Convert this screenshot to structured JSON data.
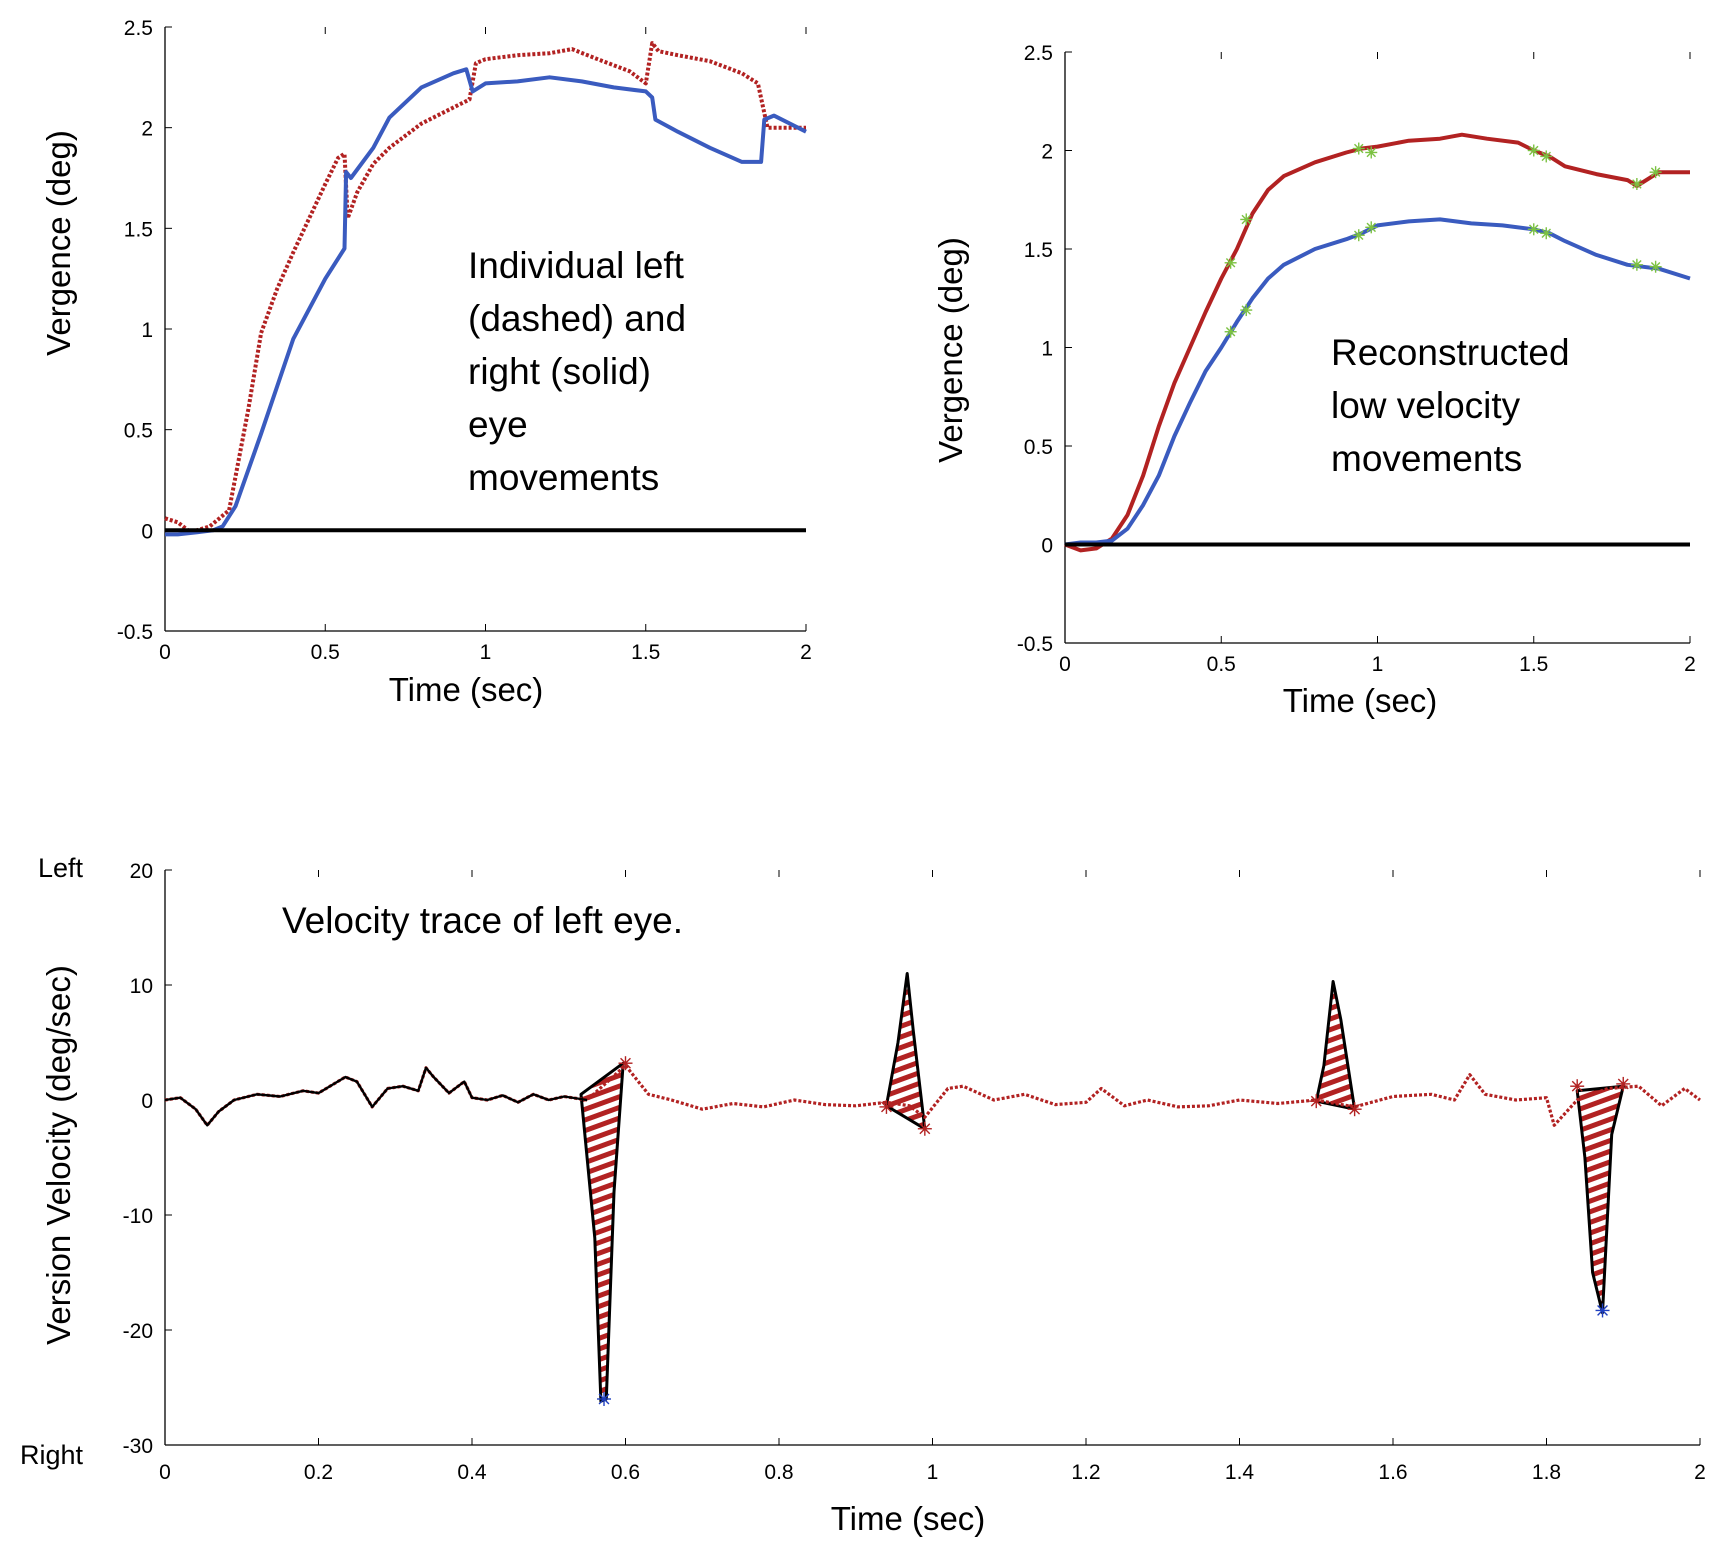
{
  "chart_data": [
    {
      "type": "line",
      "xlabel": "Time (sec)",
      "ylabel": "Vergence (deg)",
      "xlim": [
        0,
        2
      ],
      "ylim": [
        -0.5,
        2.5
      ],
      "xticks": [
        "0",
        "0.5",
        "1",
        "1.5",
        "2"
      ],
      "yticks": [
        "-0.5",
        "0",
        "0.5",
        "1",
        "1.5",
        "2",
        "2.5"
      ],
      "annotation": [
        "Individual left",
        "(dashed) and",
        "right (solid)",
        "eye",
        "movements"
      ],
      "colors": {
        "dashed": "#b22222",
        "solid": "#3a5bbf",
        "zero": "#000000"
      },
      "series": [
        {
          "style": "dashed",
          "color": "#b22222",
          "x": [
            0,
            0.04,
            0.08,
            0.14,
            0.2,
            0.26,
            0.3,
            0.35,
            0.4,
            0.45,
            0.5,
            0.54,
            0.56,
            0.57,
            0.6,
            0.65,
            0.7,
            0.8,
            0.9,
            0.95,
            0.97,
            1.0,
            1.1,
            1.2,
            1.27,
            1.35,
            1.45,
            1.5,
            1.52,
            1.54,
            1.6,
            1.7,
            1.8,
            1.85,
            1.88,
            1.9,
            2.0
          ],
          "y": [
            0.06,
            0.04,
            -0.01,
            0.02,
            0.1,
            0.6,
            0.98,
            1.2,
            1.38,
            1.55,
            1.72,
            1.85,
            1.87,
            1.55,
            1.68,
            1.82,
            1.9,
            2.02,
            2.1,
            2.14,
            2.32,
            2.34,
            2.36,
            2.37,
            2.39,
            2.34,
            2.28,
            2.22,
            2.42,
            2.38,
            2.36,
            2.33,
            2.27,
            2.22,
            2.0,
            2.0,
            2.0
          ]
        },
        {
          "style": "solid",
          "color": "#3a5bbf",
          "x": [
            0,
            0.04,
            0.1,
            0.15,
            0.18,
            0.22,
            0.3,
            0.4,
            0.5,
            0.56,
            0.565,
            0.58,
            0.65,
            0.7,
            0.8,
            0.9,
            0.94,
            0.96,
            1.0,
            1.1,
            1.2,
            1.3,
            1.4,
            1.5,
            1.52,
            1.53,
            1.6,
            1.7,
            1.8,
            1.86,
            1.87,
            1.9,
            2.0
          ],
          "y": [
            -0.02,
            -0.02,
            -0.01,
            0.0,
            0.02,
            0.12,
            0.48,
            0.95,
            1.25,
            1.4,
            1.78,
            1.75,
            1.9,
            2.05,
            2.2,
            2.27,
            2.29,
            2.18,
            2.22,
            2.23,
            2.25,
            2.23,
            2.2,
            2.18,
            2.15,
            2.04,
            1.98,
            1.9,
            1.83,
            1.83,
            2.04,
            2.06,
            1.98
          ]
        },
        {
          "style": "zero",
          "color": "#000000",
          "x": [
            0,
            2
          ],
          "y": [
            0,
            0
          ]
        }
      ]
    },
    {
      "type": "line",
      "xlabel": "Time (sec)",
      "ylabel": "Vergence (deg)",
      "xlim": [
        0,
        2
      ],
      "ylim": [
        -0.5,
        2.5
      ],
      "xticks": [
        "0",
        "0.5",
        "1",
        "1.5",
        "2"
      ],
      "yticks": [
        "-0.5",
        "0",
        "0.5",
        "1",
        "1.5",
        "2",
        "2.5"
      ],
      "annotation": [
        "Reconstructed",
        "low velocity",
        "movements"
      ],
      "colors": {
        "red": "#b22222",
        "blue": "#3a5bbf",
        "markers": "#7cc242",
        "zero": "#000000"
      },
      "series": [
        {
          "color": "#b22222",
          "x": [
            0,
            0.05,
            0.1,
            0.15,
            0.2,
            0.25,
            0.3,
            0.35,
            0.4,
            0.45,
            0.5,
            0.55,
            0.6,
            0.65,
            0.7,
            0.8,
            0.9,
            0.95,
            1.0,
            1.1,
            1.2,
            1.27,
            1.35,
            1.45,
            1.5,
            1.55,
            1.6,
            1.7,
            1.8,
            1.83,
            1.9,
            2.0
          ],
          "y": [
            0.0,
            -0.03,
            -0.02,
            0.03,
            0.15,
            0.35,
            0.6,
            0.82,
            1.0,
            1.18,
            1.35,
            1.5,
            1.68,
            1.8,
            1.87,
            1.94,
            1.99,
            2.01,
            2.02,
            2.05,
            2.06,
            2.08,
            2.06,
            2.04,
            2.0,
            1.97,
            1.92,
            1.88,
            1.85,
            1.82,
            1.89,
            1.89
          ]
        },
        {
          "color": "#3a5bbf",
          "x": [
            0,
            0.05,
            0.1,
            0.15,
            0.2,
            0.25,
            0.3,
            0.35,
            0.4,
            0.45,
            0.5,
            0.55,
            0.6,
            0.65,
            0.7,
            0.8,
            0.9,
            0.95,
            1.0,
            1.1,
            1.2,
            1.3,
            1.4,
            1.5,
            1.55,
            1.6,
            1.7,
            1.8,
            1.9,
            2.0
          ],
          "y": [
            0.0,
            0.01,
            0.01,
            0.02,
            0.08,
            0.2,
            0.35,
            0.55,
            0.72,
            0.88,
            1.0,
            1.13,
            1.25,
            1.35,
            1.42,
            1.5,
            1.55,
            1.58,
            1.62,
            1.64,
            1.65,
            1.63,
            1.62,
            1.6,
            1.58,
            1.54,
            1.47,
            1.42,
            1.4,
            1.35
          ]
        },
        {
          "style": "zero",
          "color": "#000000",
          "x": [
            0,
            2
          ],
          "y": [
            0,
            0
          ]
        }
      ],
      "markers": [
        {
          "x": 0.53,
          "y": 1.43
        },
        {
          "x": 0.58,
          "y": 1.65
        },
        {
          "x": 0.94,
          "y": 2.01
        },
        {
          "x": 0.98,
          "y": 1.99
        },
        {
          "x": 1.5,
          "y": 2.0
        },
        {
          "x": 1.54,
          "y": 1.97
        },
        {
          "x": 1.83,
          "y": 1.83
        },
        {
          "x": 1.89,
          "y": 1.89
        },
        {
          "x": 0.53,
          "y": 1.08
        },
        {
          "x": 0.58,
          "y": 1.19
        },
        {
          "x": 0.94,
          "y": 1.57
        },
        {
          "x": 0.98,
          "y": 1.61
        },
        {
          "x": 1.5,
          "y": 1.6
        },
        {
          "x": 1.54,
          "y": 1.58
        },
        {
          "x": 1.83,
          "y": 1.42
        },
        {
          "x": 1.89,
          "y": 1.41
        }
      ]
    },
    {
      "type": "line",
      "xlabel": "Time (sec)",
      "ylabel": "Version Velocity (deg/sec)",
      "xlim": [
        0,
        2
      ],
      "ylim": [
        -30,
        20
      ],
      "xticks": [
        "0",
        "0.2",
        "0.4",
        "0.6",
        "0.8",
        "1",
        "1.2",
        "1.4",
        "1.6",
        "1.8",
        "2"
      ],
      "yticks": [
        "-30",
        "-20",
        "-10",
        "0",
        "10",
        "20"
      ],
      "direction_labels": {
        "top": "Left",
        "bottom": "Right"
      },
      "annotation": "Velocity trace of left eye.",
      "colors": {
        "trace": "#b22222",
        "outline": "#000000",
        "hatch": "#b22222",
        "peak": "#1f3fbf"
      },
      "series": [
        {
          "name": "trace",
          "color": "#b22222",
          "x": [
            0,
            0.02,
            0.04,
            0.055,
            0.07,
            0.09,
            0.12,
            0.15,
            0.18,
            0.2,
            0.22,
            0.235,
            0.25,
            0.27,
            0.29,
            0.31,
            0.33,
            0.34,
            0.35,
            0.37,
            0.39,
            0.4,
            0.42,
            0.44,
            0.46,
            0.48,
            0.5,
            0.52,
            0.55,
            0.57,
            0.6,
            0.63,
            0.66,
            0.7,
            0.74,
            0.78,
            0.82,
            0.86,
            0.9,
            0.94,
            0.97,
            0.99,
            1.02,
            1.04,
            1.08,
            1.12,
            1.16,
            1.2,
            1.22,
            1.25,
            1.28,
            1.32,
            1.36,
            1.4,
            1.45,
            1.5,
            1.55,
            1.6,
            1.65,
            1.68,
            1.7,
            1.72,
            1.76,
            1.8,
            1.81,
            1.84,
            1.88,
            1.92,
            1.95,
            1.98,
            2.0
          ],
          "y": [
            0,
            0.2,
            -0.8,
            -2.2,
            -1.0,
            0.0,
            0.5,
            0.3,
            0.8,
            0.6,
            1.4,
            2.0,
            1.6,
            -0.6,
            1.0,
            1.2,
            0.8,
            2.8,
            2.0,
            0.6,
            1.6,
            0.2,
            0.0,
            0.4,
            -0.2,
            0.5,
            0.0,
            0.3,
            0.0,
            1.2,
            3.0,
            0.5,
            0.0,
            -0.8,
            -0.3,
            -0.6,
            0.0,
            -0.4,
            -0.5,
            -0.2,
            -0.5,
            -1.5,
            1.0,
            1.2,
            0.0,
            0.5,
            -0.4,
            -0.2,
            1.0,
            -0.5,
            0.0,
            -0.6,
            -0.5,
            0.0,
            -0.3,
            0.0,
            -0.6,
            0.3,
            0.5,
            0.0,
            2.2,
            0.5,
            0.0,
            0.2,
            -2.2,
            0.0,
            1.0,
            1.2,
            -0.5,
            1.0,
            0.0
          ]
        },
        {
          "name": "outline",
          "color": "#000000",
          "x": [
            0,
            0.02,
            0.04,
            0.055,
            0.07,
            0.09,
            0.12,
            0.15,
            0.18,
            0.2,
            0.22,
            0.235,
            0.25,
            0.27,
            0.29,
            0.31,
            0.33,
            0.34,
            0.35,
            0.37,
            0.39,
            0.4,
            0.42,
            0.44,
            0.46,
            0.48,
            0.5,
            0.52,
            0.55
          ],
          "y": [
            0,
            0.2,
            -0.8,
            -2.2,
            -1.0,
            0.0,
            0.5,
            0.3,
            0.8,
            0.6,
            1.4,
            2.0,
            1.6,
            -0.6,
            1.0,
            1.2,
            0.8,
            2.8,
            2.0,
            0.6,
            1.6,
            0.2,
            0.0,
            0.4,
            -0.2,
            0.5,
            0.0,
            0.3,
            0.0
          ]
        }
      ],
      "saccades": [
        {
          "polygon": [
            [
              0.542,
              0.5
            ],
            [
              0.56,
              -12
            ],
            [
              0.568,
              -26.2
            ],
            [
              0.575,
              -26
            ],
            [
              0.585,
              -8
            ],
            [
              0.597,
              3.2
            ],
            [
              0.542,
              0.5
            ]
          ],
          "peak": [
            0.572,
            -26.0
          ],
          "ends": [
            [
              0.6,
              3.2
            ]
          ]
        },
        {
          "polygon": [
            [
              0.94,
              -0.5
            ],
            [
              0.955,
              5
            ],
            [
              0.967,
              11
            ],
            [
              0.975,
              6
            ],
            [
              0.99,
              -2.5
            ],
            [
              0.94,
              -0.5
            ]
          ],
          "peak": null,
          "ends": [
            [
              0.94,
              -0.6
            ],
            [
              0.99,
              -2.5
            ]
          ]
        },
        {
          "polygon": [
            [
              1.5,
              -0.1
            ],
            [
              1.51,
              3
            ],
            [
              1.522,
              10.3
            ],
            [
              1.532,
              7
            ],
            [
              1.55,
              -0.8
            ],
            [
              1.5,
              -0.1
            ]
          ],
          "peak": null,
          "ends": [
            [
              1.5,
              -0.1
            ],
            [
              1.55,
              -0.8
            ]
          ]
        },
        {
          "polygon": [
            [
              1.84,
              0.8
            ],
            [
              1.85,
              -5
            ],
            [
              1.86,
              -15
            ],
            [
              1.873,
              -18.5
            ],
            [
              1.885,
              -3
            ],
            [
              1.9,
              1.2
            ],
            [
              1.84,
              0.8
            ]
          ],
          "peak": [
            1.873,
            -18.3
          ],
          "ends": [
            [
              1.84,
              1.2
            ],
            [
              1.9,
              1.4
            ]
          ]
        }
      ]
    }
  ]
}
